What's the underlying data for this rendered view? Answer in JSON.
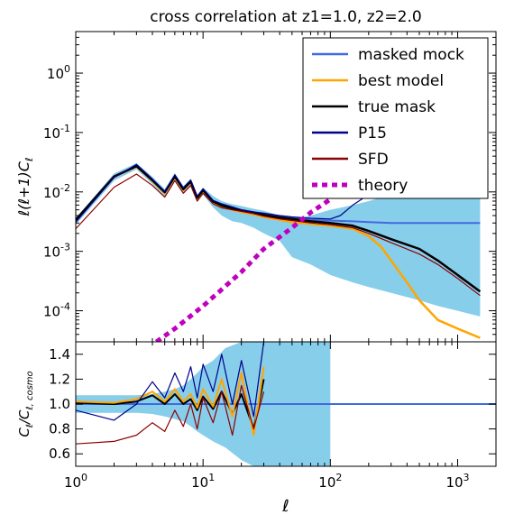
{
  "chart_data": [
    {
      "type": "line",
      "title": "cross correlation at z1=1.0, z2=2.0",
      "xlabel": "",
      "ylabel": "ℓ(ℓ+1)C",
      "ylabel_sub": "ℓ",
      "xscale": "log",
      "yscale": "log",
      "xlim": [
        1,
        2000
      ],
      "ylim": [
        3e-05,
        5
      ],
      "grid": false,
      "legend_position": "top-right",
      "y_ticks": [
        {
          "value": 0.0001,
          "base": "10",
          "exp": "-4"
        },
        {
          "value": 0.001,
          "base": "10",
          "exp": "-3"
        },
        {
          "value": 0.01,
          "base": "10",
          "exp": "-2"
        },
        {
          "value": 0.1,
          "base": "10",
          "exp": "-1"
        },
        {
          "value": 1,
          "base": "10",
          "exp": "0"
        }
      ],
      "series": [
        {
          "name": "masked mock",
          "kind": "band",
          "color": "#87ceeb",
          "x": [
            1,
            2,
            3,
            4,
            5,
            6,
            7,
            8,
            9,
            10,
            12,
            14,
            17,
            20,
            25,
            30,
            40,
            50,
            70,
            100,
            150,
            200,
            300,
            500,
            700,
            1000,
            1500
          ],
          "lower": [
            0.0028,
            0.0155,
            0.024,
            0.0135,
            0.0085,
            0.016,
            0.0095,
            0.013,
            0.0068,
            0.009,
            0.0055,
            0.004,
            0.0032,
            0.003,
            0.0025,
            0.002,
            0.0015,
            0.0008,
            0.0006,
            0.0004,
            0.0003,
            0.00025,
            0.0002,
            0.00015,
            0.00012,
            0.0001,
            8e-05
          ],
          "upper": [
            0.0036,
            0.0205,
            0.0305,
            0.018,
            0.0112,
            0.0205,
            0.0125,
            0.0168,
            0.009,
            0.0118,
            0.0085,
            0.007,
            0.0062,
            0.0058,
            0.0052,
            0.0048,
            0.004,
            0.0035,
            0.004,
            0.005,
            0.006,
            0.007,
            0.009,
            0.012,
            0.015,
            0.02,
            0.025
          ]
        },
        {
          "name": "masked mock",
          "kind": "line",
          "color": "#4169e1",
          "x": [
            1,
            2,
            3,
            4,
            5,
            6,
            7,
            8,
            9,
            10,
            12,
            14,
            17,
            20,
            25,
            30,
            40,
            50,
            70,
            100,
            150,
            200,
            300,
            500,
            700,
            1000,
            1500
          ],
          "y": [
            0.0033,
            0.018,
            0.027,
            0.0155,
            0.0098,
            0.018,
            0.011,
            0.0148,
            0.0079,
            0.0105,
            0.0068,
            0.0058,
            0.0052,
            0.0048,
            0.0045,
            0.0042,
            0.0038,
            0.0036,
            0.0034,
            0.0033,
            0.0032,
            0.0031,
            0.003,
            0.003,
            0.003,
            0.003,
            0.003
          ]
        },
        {
          "name": "best model",
          "kind": "line",
          "color": "#ffa500",
          "x": [
            1,
            2,
            3,
            4,
            5,
            6,
            7,
            8,
            9,
            10,
            12,
            14,
            17,
            20,
            25,
            30,
            40,
            50,
            70,
            100,
            150,
            200,
            250,
            300,
            400,
            500,
            700,
            1000,
            1500
          ],
          "y": [
            0.0033,
            0.0178,
            0.0268,
            0.0153,
            0.0096,
            0.0178,
            0.0108,
            0.0146,
            0.0078,
            0.0103,
            0.0067,
            0.0057,
            0.005,
            0.0046,
            0.0042,
            0.0038,
            0.0034,
            0.0031,
            0.0029,
            0.0027,
            0.0024,
            0.0018,
            0.0012,
            0.0007,
            0.0003,
            0.00015,
            7e-05,
            5e-05,
            3.5e-05
          ]
        },
        {
          "name": "true mask",
          "kind": "line",
          "color": "#000000",
          "x": [
            1,
            2,
            3,
            4,
            5,
            6,
            7,
            8,
            9,
            10,
            12,
            14,
            17,
            20,
            25,
            30,
            40,
            50,
            70,
            100,
            150,
            200,
            300,
            500,
            700,
            1000,
            1500
          ],
          "y": [
            0.0034,
            0.0182,
            0.0272,
            0.0157,
            0.0099,
            0.0182,
            0.0111,
            0.015,
            0.008,
            0.0107,
            0.0069,
            0.0059,
            0.0053,
            0.0049,
            0.0045,
            0.0041,
            0.0037,
            0.0035,
            0.0032,
            0.003,
            0.0027,
            0.0022,
            0.0016,
            0.0011,
            0.0007,
            0.0004,
            0.00021
          ]
        },
        {
          "name": "P15",
          "kind": "line",
          "color": "#00008b",
          "x": [
            1,
            2,
            3,
            4,
            5,
            6,
            7,
            8,
            9,
            10,
            12,
            14,
            17,
            20,
            25,
            30,
            40,
            50,
            70,
            100,
            120,
            150,
            200
          ],
          "y": [
            0.0031,
            0.0175,
            0.029,
            0.0165,
            0.0102,
            0.0195,
            0.0118,
            0.0158,
            0.0084,
            0.0113,
            0.0072,
            0.0063,
            0.0056,
            0.005,
            0.0046,
            0.0044,
            0.004,
            0.0038,
            0.0036,
            0.0035,
            0.004,
            0.006,
            0.009
          ]
        },
        {
          "name": "SFD",
          "kind": "line",
          "color": "#8b0000",
          "x": [
            1,
            2,
            3,
            4,
            5,
            6,
            7,
            8,
            9,
            10,
            12,
            14,
            17,
            20,
            25,
            30,
            40,
            50,
            70,
            100,
            150,
            200,
            300,
            500,
            700,
            1000,
            1500
          ],
          "y": [
            0.0024,
            0.012,
            0.02,
            0.0128,
            0.0082,
            0.0155,
            0.0095,
            0.0128,
            0.007,
            0.0095,
            0.0063,
            0.0054,
            0.005,
            0.0047,
            0.0043,
            0.0039,
            0.0035,
            0.0033,
            0.003,
            0.0028,
            0.0025,
            0.002,
            0.0014,
            0.0009,
            0.0006,
            0.00035,
            0.00018
          ]
        },
        {
          "name": "theory",
          "kind": "dashed",
          "color": "#bf00bf",
          "x": [
            4.3,
            6,
            10,
            20,
            30,
            50,
            70,
            100
          ],
          "y": [
            3e-05,
            5e-05,
            0.00012,
            0.00045,
            0.0011,
            0.0025,
            0.0045,
            0.0075
          ]
        }
      ]
    },
    {
      "type": "line",
      "xlabel": "ℓ",
      "ylabel": "C",
      "ylabel_sub": "ℓ",
      "ylabel_rest": "/C",
      "ylabel_sub2": "ℓ, cosmo",
      "xscale": "log",
      "yscale": "linear",
      "xlim": [
        1,
        2000
      ],
      "ylim": [
        0.5,
        1.5
      ],
      "grid": false,
      "x_ticks": [
        {
          "value": 1,
          "base": "10",
          "exp": "0"
        },
        {
          "value": 10,
          "base": "10",
          "exp": "1"
        },
        {
          "value": 100,
          "base": "10",
          "exp": "2"
        },
        {
          "value": 1000,
          "base": "10",
          "exp": "3"
        }
      ],
      "y_ticks": [
        "0.6",
        "0.8",
        "1.0",
        "1.2",
        "1.4"
      ],
      "series": [
        {
          "name": "masked mock",
          "kind": "band",
          "color": "#87ceeb",
          "x": [
            1,
            2,
            3,
            4,
            5,
            6,
            7,
            8,
            9,
            10,
            12,
            15,
            20,
            25,
            30,
            40,
            50,
            70,
            100
          ],
          "lower": [
            0.93,
            0.93,
            0.93,
            0.92,
            0.9,
            0.88,
            0.86,
            0.82,
            0.78,
            0.75,
            0.7,
            0.65,
            0.55,
            0.5,
            0.5,
            0.5,
            0.5,
            0.5,
            0.5
          ],
          "upper": [
            1.07,
            1.07,
            1.07,
            1.08,
            1.1,
            1.12,
            1.15,
            1.2,
            1.25,
            1.3,
            1.35,
            1.45,
            1.5,
            1.5,
            1.5,
            1.5,
            1.5,
            1.5,
            1.5
          ]
        },
        {
          "name": "masked mock",
          "kind": "line",
          "color": "#4169e1",
          "x": [
            1,
            2000
          ],
          "y": [
            1.0,
            1.0
          ]
        },
        {
          "name": "true mask",
          "kind": "line",
          "color": "#000000",
          "x": [
            1,
            2,
            3,
            4,
            5,
            6,
            7,
            8,
            9,
            10,
            12,
            14,
            17,
            20,
            25,
            30
          ],
          "y": [
            1.01,
            1.0,
            1.02,
            1.07,
            1.0,
            1.08,
            1.0,
            1.04,
            0.95,
            1.06,
            0.96,
            1.1,
            0.92,
            1.08,
            0.8,
            1.2
          ]
        },
        {
          "name": "best model",
          "kind": "line",
          "color": "#ffa500",
          "x": [
            1,
            2,
            3,
            4,
            5,
            6,
            7,
            8,
            9,
            10,
            12,
            14,
            17,
            20,
            25,
            30
          ],
          "y": [
            1.02,
            1.01,
            1.04,
            1.1,
            1.02,
            1.12,
            1.02,
            1.08,
            0.97,
            1.12,
            0.98,
            1.2,
            0.9,
            1.25,
            0.75,
            1.3
          ]
        },
        {
          "name": "P15",
          "kind": "line",
          "color": "#00008b",
          "x": [
            1,
            2,
            3,
            4,
            5,
            6,
            7,
            8,
            9,
            10,
            12,
            14,
            17,
            20,
            25,
            30
          ],
          "y": [
            0.95,
            0.87,
            1.0,
            1.18,
            1.05,
            1.25,
            1.1,
            1.3,
            1.05,
            1.32,
            1.1,
            1.4,
            1.0,
            1.35,
            0.9,
            1.5
          ]
        },
        {
          "name": "SFD",
          "kind": "line",
          "color": "#8b0000",
          "x": [
            1,
            2,
            3,
            4,
            5,
            6,
            7,
            8,
            9,
            10,
            12,
            14,
            17,
            20,
            25,
            30
          ],
          "y": [
            0.68,
            0.7,
            0.75,
            0.85,
            0.78,
            0.95,
            0.82,
            1.0,
            0.8,
            1.05,
            0.85,
            1.1,
            0.75,
            1.15,
            0.8,
            1.1
          ]
        }
      ]
    }
  ],
  "legend": [
    {
      "label": "masked mock",
      "color": "#4169e1",
      "style": "solid"
    },
    {
      "label": "best model",
      "color": "#ffa500",
      "style": "solid"
    },
    {
      "label": "true mask",
      "color": "#000000",
      "style": "solid"
    },
    {
      "label": "P15",
      "color": "#00008b",
      "style": "solid"
    },
    {
      "label": "SFD",
      "color": "#8b0000",
      "style": "solid"
    },
    {
      "label": "theory",
      "color": "#bf00bf",
      "style": "dashed"
    }
  ],
  "colors": {
    "band": "#87ceeb",
    "masked_mock": "#4169e1",
    "best_model": "#ffa500",
    "true_mask": "#000000",
    "p15": "#00008b",
    "sfd": "#8b0000",
    "theory": "#bf00bf"
  }
}
